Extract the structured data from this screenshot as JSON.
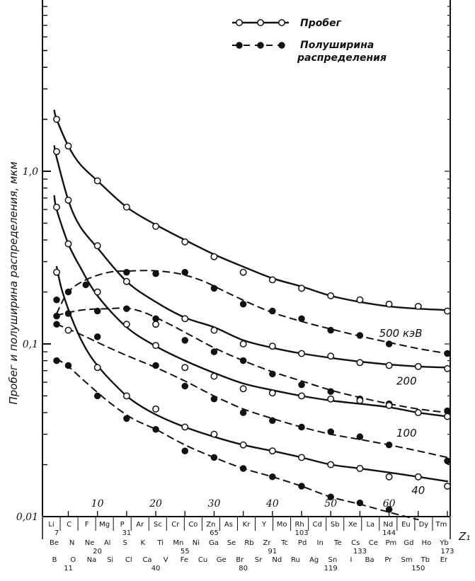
{
  "chart_data": {
    "type": "line",
    "x_axis": {
      "label": "Z₁",
      "ticks": [
        10,
        20,
        30,
        40,
        50,
        60
      ],
      "range": [
        3,
        70
      ]
    },
    "y_axis": {
      "label": "Пробег и полуширина распределения, мкм",
      "scale": "log",
      "range": [
        0.01,
        5
      ],
      "tick_labels": [
        {
          "value": 0.01,
          "text": "0,01"
        },
        {
          "value": 0.1,
          "text": "0,1"
        },
        {
          "value": 1,
          "text": "1,0"
        }
      ]
    },
    "legend": {
      "placement": "top-right",
      "entries": [
        {
          "text": "Пробег",
          "style": "solid-open"
        },
        {
          "text": "Полуширина распределения",
          "style": "dashed-filled"
        }
      ]
    },
    "energy_labels": [
      {
        "text": "500 кэВ",
        "x": 62,
        "y": 0.11
      },
      {
        "text": "200",
        "x": 63,
        "y": 0.058
      },
      {
        "text": "100",
        "x": 63,
        "y": 0.029
      },
      {
        "text": "40",
        "x": 65,
        "y": 0.0135
      }
    ],
    "elements_row1": [
      "Li",
      "C",
      "F",
      "Mg",
      "P",
      "Ar",
      "Sc",
      "Cr",
      "Co",
      "Zn",
      "As",
      "Kr",
      "Y",
      "Mo",
      "Rh",
      "Cd",
      "Sb",
      "Xe",
      "La",
      "Nd",
      "Eu",
      "Dy",
      "Tm"
    ],
    "elements_row2": [
      "Be",
      "N",
      "Ne",
      "Al",
      "S",
      "K",
      "Ti",
      "Mn",
      "Ni",
      "Ga",
      "Se",
      "Rb",
      "Zr",
      "Tc",
      "Pd",
      "In",
      "Te",
      "Cs",
      "Ce",
      "Pm",
      "Gd",
      "Ho",
      "Yb"
    ],
    "elements_row3": [
      "B",
      "O",
      "Na",
      "Si",
      "Cl",
      "Ca",
      "V",
      "Fe",
      "Cu",
      "Ge",
      "Br",
      "Sr",
      "Nd",
      "Ru",
      "Ag",
      "Sn",
      "I",
      "Ba",
      "Pr",
      "Sm",
      "Tb",
      "Er"
    ],
    "mass_numbers": [
      {
        "text": "7",
        "z": 3,
        "row": 1
      },
      {
        "text": "31",
        "z": 15,
        "row": 1
      },
      {
        "text": "65",
        "z": 30,
        "row": 1
      },
      {
        "text": "103",
        "z": 45,
        "row": 1
      },
      {
        "text": "144",
        "z": 60,
        "row": 1
      },
      {
        "text": "20",
        "z": 10,
        "row": 2
      },
      {
        "text": "55",
        "z": 25,
        "row": 2
      },
      {
        "text": "91",
        "z": 40,
        "row": 2
      },
      {
        "text": "133",
        "z": 55,
        "row": 2
      },
      {
        "text": "173",
        "z": 70,
        "row": 2
      },
      {
        "text": "11",
        "z": 5,
        "row": 3
      },
      {
        "text": "40",
        "z": 20,
        "row": 3
      },
      {
        "text": "80",
        "z": 35,
        "row": 3
      },
      {
        "text": "119",
        "z": 50,
        "row": 3
      },
      {
        "text": "150",
        "z": 65,
        "row": 3
      }
    ],
    "series": [
      {
        "energy": "500 кэВ",
        "kind": "range",
        "curve": [
          [
            2.6,
            2.25
          ],
          [
            3,
            2.0
          ],
          [
            5,
            1.4
          ],
          [
            7,
            1.1
          ],
          [
            10,
            0.88
          ],
          [
            15,
            0.62
          ],
          [
            20,
            0.49
          ],
          [
            25,
            0.4
          ],
          [
            30,
            0.33
          ],
          [
            35,
            0.28
          ],
          [
            40,
            0.24
          ],
          [
            45,
            0.215
          ],
          [
            50,
            0.19
          ],
          [
            55,
            0.175
          ],
          [
            60,
            0.165
          ],
          [
            65,
            0.16
          ],
          [
            70,
            0.157
          ]
        ],
        "points": [
          [
            3,
            2.0
          ],
          [
            5,
            1.4
          ],
          [
            10,
            0.88
          ],
          [
            15,
            0.62
          ],
          [
            20,
            0.48
          ],
          [
            25,
            0.39
          ],
          [
            30,
            0.32
          ],
          [
            35,
            0.26
          ],
          [
            40,
            0.235
          ],
          [
            45,
            0.21
          ],
          [
            50,
            0.19
          ],
          [
            55,
            0.18
          ],
          [
            60,
            0.17
          ],
          [
            65,
            0.165
          ],
          [
            70,
            0.155
          ]
        ]
      },
      {
        "energy": "500 кэВ",
        "kind": "halfwidth",
        "curve": [
          [
            3,
            0.15
          ],
          [
            5,
            0.2
          ],
          [
            8,
            0.235
          ],
          [
            12,
            0.26
          ],
          [
            16,
            0.265
          ],
          [
            20,
            0.265
          ],
          [
            24,
            0.255
          ],
          [
            28,
            0.232
          ],
          [
            32,
            0.2
          ],
          [
            36,
            0.173
          ],
          [
            40,
            0.152
          ],
          [
            45,
            0.135
          ],
          [
            50,
            0.122
          ],
          [
            55,
            0.111
          ],
          [
            60,
            0.102
          ],
          [
            65,
            0.094
          ],
          [
            70,
            0.088
          ]
        ],
        "points": [
          [
            3,
            0.18
          ],
          [
            5,
            0.2
          ],
          [
            8,
            0.22
          ],
          [
            15,
            0.26
          ],
          [
            20,
            0.255
          ],
          [
            25,
            0.26
          ],
          [
            30,
            0.21
          ],
          [
            35,
            0.17
          ],
          [
            40,
            0.155
          ],
          [
            45,
            0.14
          ],
          [
            50,
            0.12
          ],
          [
            55,
            0.112
          ],
          [
            60,
            0.1
          ],
          [
            70,
            0.088
          ]
        ]
      },
      {
        "energy": "200",
        "kind": "range",
        "curve": [
          [
            2.6,
            1.4
          ],
          [
            3,
            1.2
          ],
          [
            5,
            0.68
          ],
          [
            7,
            0.48
          ],
          [
            10,
            0.36
          ],
          [
            15,
            0.23
          ],
          [
            20,
            0.175
          ],
          [
            25,
            0.142
          ],
          [
            30,
            0.125
          ],
          [
            35,
            0.105
          ],
          [
            40,
            0.095
          ],
          [
            45,
            0.088
          ],
          [
            50,
            0.083
          ],
          [
            55,
            0.079
          ],
          [
            60,
            0.076
          ],
          [
            65,
            0.074
          ],
          [
            70,
            0.073
          ]
        ],
        "points": [
          [
            3,
            1.3
          ],
          [
            5,
            0.68
          ],
          [
            10,
            0.37
          ],
          [
            15,
            0.23
          ],
          [
            20,
            0.13
          ],
          [
            25,
            0.14
          ],
          [
            30,
            0.12
          ],
          [
            35,
            0.1
          ],
          [
            40,
            0.097
          ],
          [
            45,
            0.088
          ],
          [
            50,
            0.085
          ],
          [
            55,
            0.078
          ],
          [
            60,
            0.075
          ],
          [
            65,
            0.074
          ],
          [
            70,
            0.072
          ]
        ]
      },
      {
        "energy": "200",
        "kind": "halfwidth",
        "curve": [
          [
            3,
            0.146
          ],
          [
            5,
            0.152
          ],
          [
            8,
            0.158
          ],
          [
            12,
            0.16
          ],
          [
            15,
            0.161
          ],
          [
            18,
            0.152
          ],
          [
            22,
            0.132
          ],
          [
            26,
            0.112
          ],
          [
            30,
            0.095
          ],
          [
            35,
            0.08
          ],
          [
            40,
            0.069
          ],
          [
            45,
            0.061
          ],
          [
            50,
            0.054
          ],
          [
            55,
            0.049
          ],
          [
            60,
            0.045
          ],
          [
            65,
            0.042
          ],
          [
            70,
            0.04
          ]
        ],
        "points": [
          [
            3,
            0.145
          ],
          [
            5,
            0.15
          ],
          [
            10,
            0.155
          ],
          [
            15,
            0.16
          ],
          [
            20,
            0.14
          ],
          [
            25,
            0.105
          ],
          [
            30,
            0.09
          ],
          [
            35,
            0.08
          ],
          [
            40,
            0.067
          ],
          [
            45,
            0.058
          ],
          [
            50,
            0.053
          ],
          [
            55,
            0.048
          ],
          [
            60,
            0.045
          ],
          [
            70,
            0.041
          ]
        ]
      },
      {
        "energy": "100",
        "kind": "range",
        "curve": [
          [
            2.6,
            0.72
          ],
          [
            3,
            0.6
          ],
          [
            5,
            0.38
          ],
          [
            7,
            0.28
          ],
          [
            10,
            0.19
          ],
          [
            15,
            0.125
          ],
          [
            20,
            0.097
          ],
          [
            25,
            0.08
          ],
          [
            30,
            0.068
          ],
          [
            35,
            0.059
          ],
          [
            40,
            0.054
          ],
          [
            45,
            0.05
          ],
          [
            50,
            0.047
          ],
          [
            55,
            0.045
          ],
          [
            60,
            0.043
          ],
          [
            65,
            0.04
          ],
          [
            70,
            0.038
          ]
        ],
        "points": [
          [
            3,
            0.62
          ],
          [
            5,
            0.38
          ],
          [
            10,
            0.2
          ],
          [
            15,
            0.13
          ],
          [
            20,
            0.098
          ],
          [
            25,
            0.073
          ],
          [
            30,
            0.065
          ],
          [
            35,
            0.055
          ],
          [
            40,
            0.052
          ],
          [
            45,
            0.05
          ],
          [
            50,
            0.048
          ],
          [
            55,
            0.047
          ],
          [
            60,
            0.044
          ],
          [
            65,
            0.04
          ],
          [
            70,
            0.038
          ]
        ]
      },
      {
        "energy": "100",
        "kind": "halfwidth",
        "curve": [
          [
            3,
            0.13
          ],
          [
            5,
            0.122
          ],
          [
            8,
            0.11
          ],
          [
            12,
            0.095
          ],
          [
            16,
            0.083
          ],
          [
            20,
            0.073
          ],
          [
            25,
            0.061
          ],
          [
            30,
            0.05
          ],
          [
            35,
            0.042
          ],
          [
            40,
            0.037
          ],
          [
            45,
            0.033
          ],
          [
            50,
            0.03
          ],
          [
            55,
            0.028
          ],
          [
            60,
            0.026
          ],
          [
            65,
            0.024
          ],
          [
            70,
            0.022
          ]
        ],
        "points": [
          [
            3,
            0.13
          ],
          [
            5,
            0.12
          ],
          [
            10,
            0.11
          ],
          [
            20,
            0.075
          ],
          [
            25,
            0.057
          ],
          [
            30,
            0.048
          ],
          [
            35,
            0.04
          ],
          [
            40,
            0.036
          ],
          [
            45,
            0.033
          ],
          [
            50,
            0.031
          ],
          [
            55,
            0.029
          ],
          [
            60,
            0.026
          ],
          [
            70,
            0.021
          ]
        ]
      },
      {
        "energy": "40",
        "kind": "range",
        "curve": [
          [
            3,
            0.28
          ],
          [
            4,
            0.2
          ],
          [
            6,
            0.13
          ],
          [
            8,
            0.094
          ],
          [
            10,
            0.075
          ],
          [
            13,
            0.058
          ],
          [
            16,
            0.047
          ],
          [
            20,
            0.039
          ],
          [
            25,
            0.033
          ],
          [
            30,
            0.029
          ],
          [
            35,
            0.026
          ],
          [
            40,
            0.024
          ],
          [
            45,
            0.022
          ],
          [
            50,
            0.02
          ],
          [
            55,
            0.019
          ],
          [
            60,
            0.018
          ],
          [
            65,
            0.017
          ],
          [
            70,
            0.016
          ]
        ],
        "points": [
          [
            3,
            0.26
          ],
          [
            5,
            0.12
          ],
          [
            10,
            0.073
          ],
          [
            15,
            0.05
          ],
          [
            20,
            0.042
          ],
          [
            25,
            0.033
          ],
          [
            30,
            0.03
          ],
          [
            35,
            0.026
          ],
          [
            40,
            0.024
          ],
          [
            45,
            0.022
          ],
          [
            50,
            0.02
          ],
          [
            55,
            0.019
          ],
          [
            60,
            0.017
          ],
          [
            65,
            0.017
          ],
          [
            70,
            0.015
          ]
        ]
      },
      {
        "energy": "40",
        "kind": "halfwidth",
        "curve": [
          [
            3,
            0.082
          ],
          [
            5,
            0.074
          ],
          [
            8,
            0.06
          ],
          [
            12,
            0.046
          ],
          [
            16,
            0.037
          ],
          [
            20,
            0.032
          ],
          [
            25,
            0.026
          ],
          [
            30,
            0.022
          ],
          [
            35,
            0.019
          ],
          [
            40,
            0.017
          ],
          [
            45,
            0.015
          ],
          [
            50,
            0.013
          ],
          [
            55,
            0.0118
          ],
          [
            60,
            0.0106
          ],
          [
            65,
            0.0096
          ]
        ],
        "points": [
          [
            3,
            0.08
          ],
          [
            5,
            0.075
          ],
          [
            10,
            0.05
          ],
          [
            15,
            0.037
          ],
          [
            20,
            0.032
          ],
          [
            25,
            0.024
          ],
          [
            30,
            0.022
          ],
          [
            35,
            0.019
          ],
          [
            40,
            0.017
          ],
          [
            45,
            0.015
          ],
          [
            50,
            0.013
          ],
          [
            55,
            0.012
          ],
          [
            60,
            0.011
          ]
        ]
      }
    ]
  }
}
